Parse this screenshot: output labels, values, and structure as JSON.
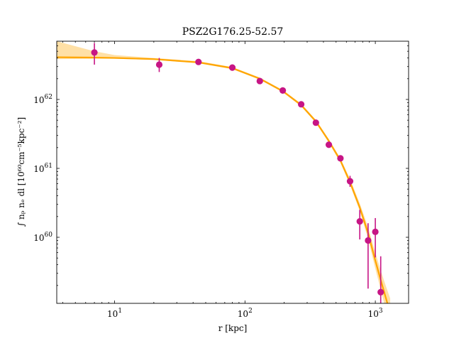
{
  "chart_data": {
    "type": "scatter",
    "title": "PSZ2G176.25-52.57",
    "xlabel": "r [kpc]",
    "ylabel": "∫ nₚ nₑ dl [10⁶⁰cm⁻⁵kpc⁻²]",
    "xscale": "log",
    "yscale": "log",
    "xlim": [
      3.6,
      1800
    ],
    "ylim": [
      1.1e+59,
      7e+62
    ],
    "x_ticks": [
      {
        "value": 10,
        "label": "10^1"
      },
      {
        "value": 100,
        "label": "10^2"
      },
      {
        "value": 1000,
        "label": "10^3"
      }
    ],
    "y_ticks": [
      {
        "value": 1e+60,
        "label": "10^60"
      },
      {
        "value": 1e+61,
        "label": "10^61"
      },
      {
        "value": 1e+62,
        "label": "10^62"
      }
    ],
    "grid": false,
    "series": [
      {
        "kind": "data",
        "color": "#c71585",
        "points": [
          {
            "x": 7,
            "y": 4.8e+62,
            "ylo": 3.2e+62,
            "yhi": 6.6e+62
          },
          {
            "x": 22,
            "y": 3.2e+62,
            "ylo": 2.5e+62,
            "yhi": 4e+62
          },
          {
            "x": 44,
            "y": 3.5e+62,
            "ylo": 3.2e+62,
            "yhi": 3.8e+62
          },
          {
            "x": 80,
            "y": 2.9e+62,
            "ylo": 2.75e+62,
            "yhi": 3.05e+62
          },
          {
            "x": 130,
            "y": 1.85e+62,
            "ylo": 1.75e+62,
            "yhi": 1.95e+62
          },
          {
            "x": 195,
            "y": 1.35e+62,
            "ylo": 1.28e+62,
            "yhi": 1.42e+62
          },
          {
            "x": 270,
            "y": 8.5e+61,
            "ylo": 8e+61,
            "yhi": 9e+61
          },
          {
            "x": 350,
            "y": 4.6e+61,
            "ylo": 4.3e+61,
            "yhi": 4.9e+61
          },
          {
            "x": 440,
            "y": 2.2e+61,
            "ylo": 2.05e+61,
            "yhi": 2.35e+61
          },
          {
            "x": 540,
            "y": 1.4e+61,
            "ylo": 1.28e+61,
            "yhi": 1.52e+61
          },
          {
            "x": 640,
            "y": 6.5e+60,
            "ylo": 5.4e+60,
            "yhi": 7.8e+60
          },
          {
            "x": 760,
            "y": 1.7e+60,
            "ylo": 9.3e+59,
            "yhi": 2.5e+60
          },
          {
            "x": 880,
            "y": 9e+59,
            "ylo": 1.8e+59,
            "yhi": 1.6e+60
          },
          {
            "x": 1000,
            "y": 1.2e+60,
            "ylo": 5.1e+59,
            "yhi": 1.9e+60
          },
          {
            "x": 1100,
            "y": 1.6e+59,
            "ylo": 1.1e+59,
            "yhi": 5.3e+59
          }
        ]
      },
      {
        "kind": "model",
        "color": "#ffa500",
        "x": [
          3.6,
          7,
          10,
          20,
          44,
          80,
          130,
          195,
          270,
          350,
          440,
          540,
          640,
          760,
          880,
          1000,
          1100,
          1200,
          1300
        ],
        "y": [
          4.1e+62,
          4.05e+62,
          4e+62,
          3.85e+62,
          3.45e+62,
          2.85e+62,
          2e+62,
          1.32e+62,
          8.3e+61,
          4.8e+61,
          2.5e+61,
          1.3e+61,
          6.3e+60,
          2.7e+60,
          1.15e+60,
          4.6e+59,
          2.4e+59,
          1.35e+59,
          8e+58
        ],
        "band_lo": [
          3.85e+62,
          3.9e+62,
          3.9e+62,
          3.75e+62,
          3.35e+62,
          2.75e+62,
          1.93e+62,
          1.27e+62,
          7.9e+61,
          4.55e+61,
          2.35e+61,
          1.2e+61,
          5.7e+60,
          2.4e+60,
          9.5e+59,
          3.5e+59,
          1.75e+59,
          9e+58,
          5e+58
        ],
        "band_hi": [
          7e+62,
          5e+62,
          4.4e+62,
          4e+62,
          3.6e+62,
          2.95e+62,
          2.08e+62,
          1.37e+62,
          8.7e+61,
          5.05e+61,
          2.65e+61,
          1.4e+61,
          7e+60,
          3.1e+60,
          1.4e+60,
          6e+59,
          3.3e+59,
          2e+59,
          1.3e+59
        ]
      }
    ]
  }
}
